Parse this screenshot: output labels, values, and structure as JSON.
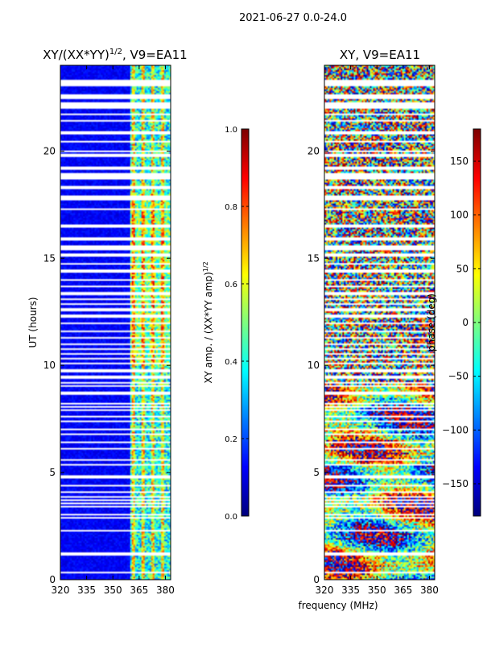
{
  "suptitle": "2021-06-27 0.0-24.0",
  "xlabel_shared": "frequency (MHz)",
  "colors": {
    "cmap": "jet",
    "flag": "#ffffff",
    "axes": "#000000"
  },
  "chart_data": [
    {
      "type": "heatmap",
      "title_main": "XY/(XX*YY)",
      "title_sup": "1/2",
      "title_rest": ", V9=EA11",
      "xlabel": "",
      "ylabel": "UT (hours)",
      "xlim": [
        320,
        383
      ],
      "ylim": [
        0,
        24
      ],
      "xticks": [
        320,
        335,
        350,
        365,
        380
      ],
      "yticks": [
        0,
        5,
        10,
        15,
        20
      ],
      "colorbar": {
        "label_main": "XY amp. / (XX*YY amp)",
        "label_sup": "1/2",
        "range": [
          0.0,
          1.0
        ],
        "ticks": [
          "0.0",
          "0.2",
          "0.4",
          "0.6",
          "0.8",
          "1.0"
        ]
      },
      "description_values": {
        "low_band_level": 0.08,
        "high_band_start_mhz": 360,
        "high_band_level": 0.5
      }
    },
    {
      "type": "heatmap",
      "title_main": "XY, V9=EA11",
      "title_sup": "",
      "title_rest": "",
      "xlabel": "frequency (MHz)",
      "ylabel": "",
      "xlim": [
        320,
        383
      ],
      "ylim": [
        0,
        24
      ],
      "xticks": [
        320,
        335,
        350,
        365,
        380
      ],
      "yticks": [
        0,
        5,
        10,
        15,
        20
      ],
      "colorbar": {
        "label_main": "phase (deg)",
        "label_sup": "",
        "range": [
          -180,
          180
        ],
        "ticks": [
          "−150",
          "−100",
          "−50",
          "0",
          "50",
          "100",
          "150"
        ]
      }
    }
  ],
  "flagged_ut_hours": [
    0.35,
    1.2,
    2.3,
    2.9,
    3.05,
    3.4,
    3.55,
    3.7,
    3.85,
    4.1,
    4.4,
    4.8,
    5.35,
    5.6,
    6.1,
    6.4,
    6.8,
    7.0,
    7.4,
    7.6,
    7.9,
    8.05,
    8.2,
    8.7,
    9.05,
    9.2,
    9.45,
    9.75,
    10.1,
    10.3,
    10.55,
    10.75,
    11.0,
    11.3,
    11.6,
    11.95,
    12.3,
    12.6,
    12.85,
    13.1,
    13.35,
    13.7,
    14.0,
    14.4,
    14.75,
    15.15,
    15.45,
    15.55,
    15.9,
    16.5,
    17.3,
    17.75,
    17.85,
    18.3,
    18.75,
    18.9,
    19.2,
    19.8,
    20.0,
    20.45,
    20.85,
    21.4,
    21.7,
    22.05,
    22.2,
    22.5,
    22.6,
    23.1,
    23.25
  ]
}
